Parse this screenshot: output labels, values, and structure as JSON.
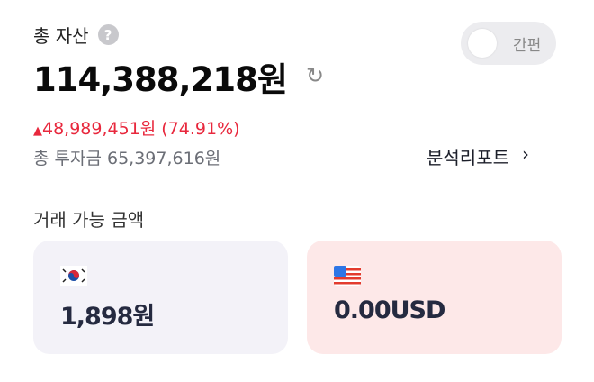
{
  "header": {
    "title": "총 자산",
    "help_icon": "?",
    "total": "114,388,218원",
    "toggle_label": "간편",
    "toggle_on": false
  },
  "summary": {
    "gain": "48,989,451원 (74.91%)",
    "gain_color": "#e8283d",
    "invested": "총 투자금 65,397,616원",
    "report_label": "분석리포트",
    "report_arrow": "›"
  },
  "available": {
    "title": "거래 가능 금액",
    "cards": [
      {
        "currency": "KRW",
        "flag": "korea-flag",
        "amount": "1,898원"
      },
      {
        "currency": "USD",
        "flag": "us-flag",
        "amount": "0.00USD"
      }
    ]
  }
}
